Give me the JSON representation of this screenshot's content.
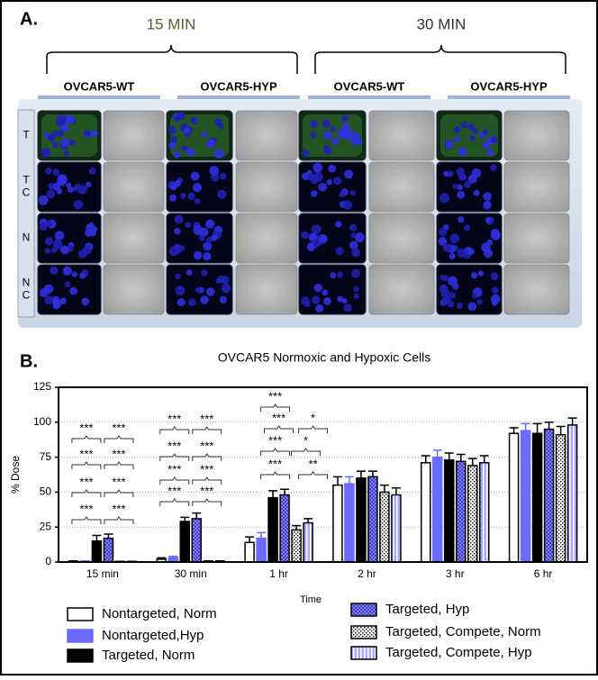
{
  "panel_a": {
    "label": "A.",
    "time_labels": [
      "15 MIN",
      "30 MIN"
    ],
    "column_headers": [
      "OVCAR5-WT",
      "OVCAR5-HYP",
      "OVCAR5-WT",
      "OVCAR5-HYP"
    ],
    "row_labels": [
      [
        "T"
      ],
      [
        "T",
        "C"
      ],
      [
        "N"
      ],
      [
        "N",
        "C"
      ]
    ]
  },
  "chart_data": {
    "type": "bar",
    "panel_label": "B.",
    "title": "OVCAR5 Normoxic and Hypoxic Cells",
    "y_label": "% Dose",
    "x_label": "Time",
    "categories": [
      "15 min",
      "30 min",
      "1 hr",
      "2 hr",
      "3 hr",
      "6 hr"
    ],
    "ylim": [
      0,
      125
    ],
    "yticks": [
      0,
      25,
      50,
      75,
      100,
      125
    ],
    "grid": true,
    "series": [
      {
        "name": "Nontargeted, Norm",
        "color": "#ffffff",
        "pattern": "solid",
        "values": [
          0.5,
          2,
          14,
          55,
          71,
          92
        ],
        "errors": [
          0.3,
          1,
          4,
          6,
          5,
          4
        ]
      },
      {
        "name": "Nontargeted,Hyp",
        "color": "#6b6bff",
        "pattern": "solid",
        "values": [
          0.5,
          3,
          17,
          56,
          75,
          94
        ],
        "errors": [
          0.3,
          1,
          4,
          5,
          5,
          5
        ]
      },
      {
        "name": "Targeted, Norm",
        "color": "#000000",
        "pattern": "solid",
        "values": [
          15,
          29,
          46,
          60,
          73,
          92
        ],
        "errors": [
          4,
          3,
          5,
          5,
          5,
          7
        ]
      },
      {
        "name": "Targeted, Hyp",
        "color": "#8080ff",
        "pattern": "checker",
        "values": [
          17,
          31,
          48,
          61,
          72,
          95
        ],
        "errors": [
          3,
          4,
          4,
          4,
          5,
          5
        ]
      },
      {
        "name": "Targeted, Compete, Norm",
        "color": "#ffffff",
        "pattern": "dots",
        "values": [
          0.3,
          0.5,
          23,
          50,
          69,
          91
        ],
        "errors": [
          0.2,
          0.3,
          3,
          5,
          5,
          6
        ]
      },
      {
        "name": "Targeted, Compete, Hyp",
        "color": "#a8a8ff",
        "pattern": "stripes",
        "values": [
          0.3,
          0.5,
          28,
          48,
          71,
          98
        ],
        "errors": [
          0.2,
          0.3,
          3,
          5,
          5,
          5
        ]
      }
    ],
    "annotations": [
      [
        "***",
        "***",
        "***",
        "***",
        "***",
        "***",
        "***",
        "***"
      ],
      [
        "***",
        "***",
        "***",
        "***",
        "***",
        "***",
        "***",
        "***"
      ],
      [
        "***",
        "***",
        "*",
        "***",
        "*",
        "***",
        "**"
      ],
      [],
      [],
      []
    ]
  }
}
